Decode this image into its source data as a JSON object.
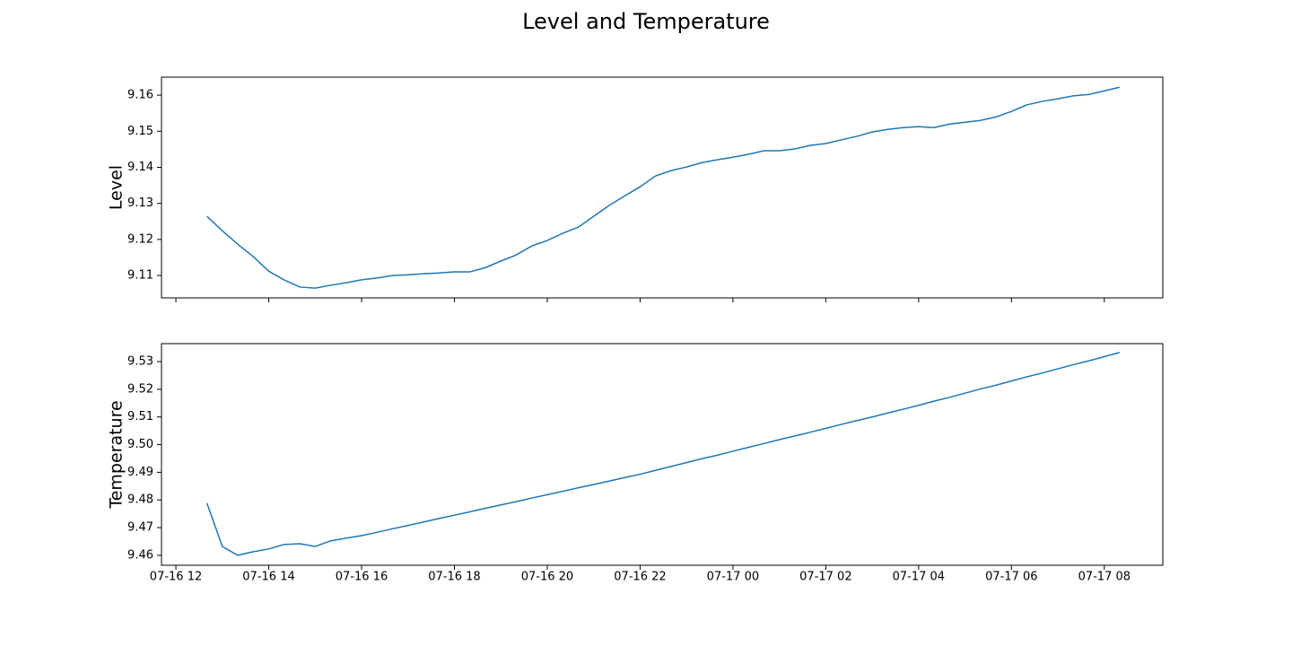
{
  "title": "Level and Temperature",
  "chart_data": [
    {
      "type": "line",
      "y_label": "Level",
      "color": "#1f77b4",
      "x": [
        12.67,
        13,
        13.33,
        13.67,
        14,
        14.33,
        14.67,
        15,
        15.33,
        15.67,
        16,
        16.33,
        16.67,
        17,
        17.33,
        17.67,
        18,
        18.33,
        18.67,
        19,
        19.33,
        19.67,
        20,
        20.33,
        20.67,
        21,
        21.33,
        21.67,
        22,
        22.33,
        22.67,
        23,
        23.33,
        23.67,
        24,
        24.33,
        24.67,
        25,
        25.33,
        25.67,
        26,
        26.33,
        26.67,
        27,
        27.33,
        27.67,
        28,
        28.33,
        28.67,
        29,
        29.33,
        29.67,
        30,
        30.33,
        30.67,
        31,
        31.33,
        31.67,
        32,
        32.33
      ],
      "values": [
        9.1264,
        9.1224,
        9.1187,
        9.1152,
        9.1112,
        9.1088,
        9.1068,
        9.1065,
        9.1073,
        9.108,
        9.1088,
        9.1093,
        9.11,
        9.1102,
        9.1105,
        9.1107,
        9.111,
        9.111,
        9.1122,
        9.114,
        9.1157,
        9.1182,
        9.1197,
        9.1217,
        9.1234,
        9.1264,
        9.1294,
        9.1321,
        9.1346,
        9.1376,
        9.1391,
        9.1401,
        9.1413,
        9.1421,
        9.1428,
        9.1436,
        9.1446,
        9.1446,
        9.1451,
        9.1461,
        9.1466,
        9.1476,
        9.1486,
        9.1498,
        9.1505,
        9.151,
        9.1513,
        9.151,
        9.152,
        9.1525,
        9.153,
        9.154,
        9.1555,
        9.1573,
        9.1583,
        9.159,
        9.1598,
        9.1602,
        9.1612,
        9.1622
      ],
      "xlim": [
        11.69,
        33.26
      ],
      "ylim": [
        9.1038,
        9.165
      ],
      "yticks": [
        9.11,
        9.12,
        9.13,
        9.14,
        9.15,
        9.16
      ]
    },
    {
      "type": "line",
      "y_label": "Temperature",
      "color": "#1f77b4",
      "x": [
        12.67,
        13,
        13.33,
        13.67,
        14,
        14.33,
        14.67,
        15,
        15.33,
        15.67,
        16,
        16.33,
        16.67,
        17,
        17.33,
        17.67,
        18,
        18.33,
        18.67,
        19,
        19.33,
        19.67,
        20,
        20.33,
        20.67,
        21,
        21.33,
        21.67,
        22,
        22.33,
        22.67,
        23,
        23.33,
        23.67,
        24,
        24.33,
        24.67,
        25,
        25.33,
        25.67,
        26,
        26.33,
        26.67,
        27,
        27.33,
        27.67,
        28,
        28.33,
        28.67,
        29,
        29.33,
        29.67,
        30,
        30.33,
        30.67,
        31,
        31.33,
        31.67,
        32,
        32.33
      ],
      "values": [
        9.4788,
        9.4632,
        9.46,
        9.4613,
        9.4623,
        9.4639,
        9.4642,
        9.4632,
        9.4652,
        9.4662,
        9.4671,
        9.4683,
        9.4696,
        9.4708,
        9.472,
        9.4733,
        9.4745,
        9.4757,
        9.477,
        9.4782,
        9.4794,
        9.4807,
        9.4819,
        9.4831,
        9.4844,
        9.4856,
        9.4868,
        9.4881,
        9.4893,
        9.4907,
        9.4921,
        9.4935,
        9.4949,
        9.4962,
        9.4976,
        9.499,
        9.5004,
        9.5018,
        9.5031,
        9.5045,
        9.5059,
        9.5073,
        9.5087,
        9.51,
        9.5114,
        9.5128,
        9.5142,
        9.5157,
        9.5171,
        9.5186,
        9.5201,
        9.5215,
        9.523,
        9.5245,
        9.5259,
        9.5274,
        9.5289,
        9.5303,
        9.5318,
        9.5333
      ],
      "xlim": [
        11.69,
        33.26
      ],
      "xticks": [
        {
          "value": 12,
          "label": "07-16 12"
        },
        {
          "value": 14,
          "label": "07-16 14"
        },
        {
          "value": 16,
          "label": "07-16 16"
        },
        {
          "value": 18,
          "label": "07-16 18"
        },
        {
          "value": 20,
          "label": "07-16 20"
        },
        {
          "value": 22,
          "label": "07-16 22"
        },
        {
          "value": 24,
          "label": "07-17 00"
        },
        {
          "value": 26,
          "label": "07-17 02"
        },
        {
          "value": 28,
          "label": "07-17 04"
        },
        {
          "value": 30,
          "label": "07-17 06"
        },
        {
          "value": 32,
          "label": "07-17 08"
        }
      ],
      "ylim": [
        9.4564,
        9.5365
      ],
      "yticks": [
        9.46,
        9.47,
        9.48,
        9.49,
        {
          "value": 9.5,
          "label": "9.50"
        },
        9.51,
        9.52,
        9.53
      ]
    }
  ]
}
